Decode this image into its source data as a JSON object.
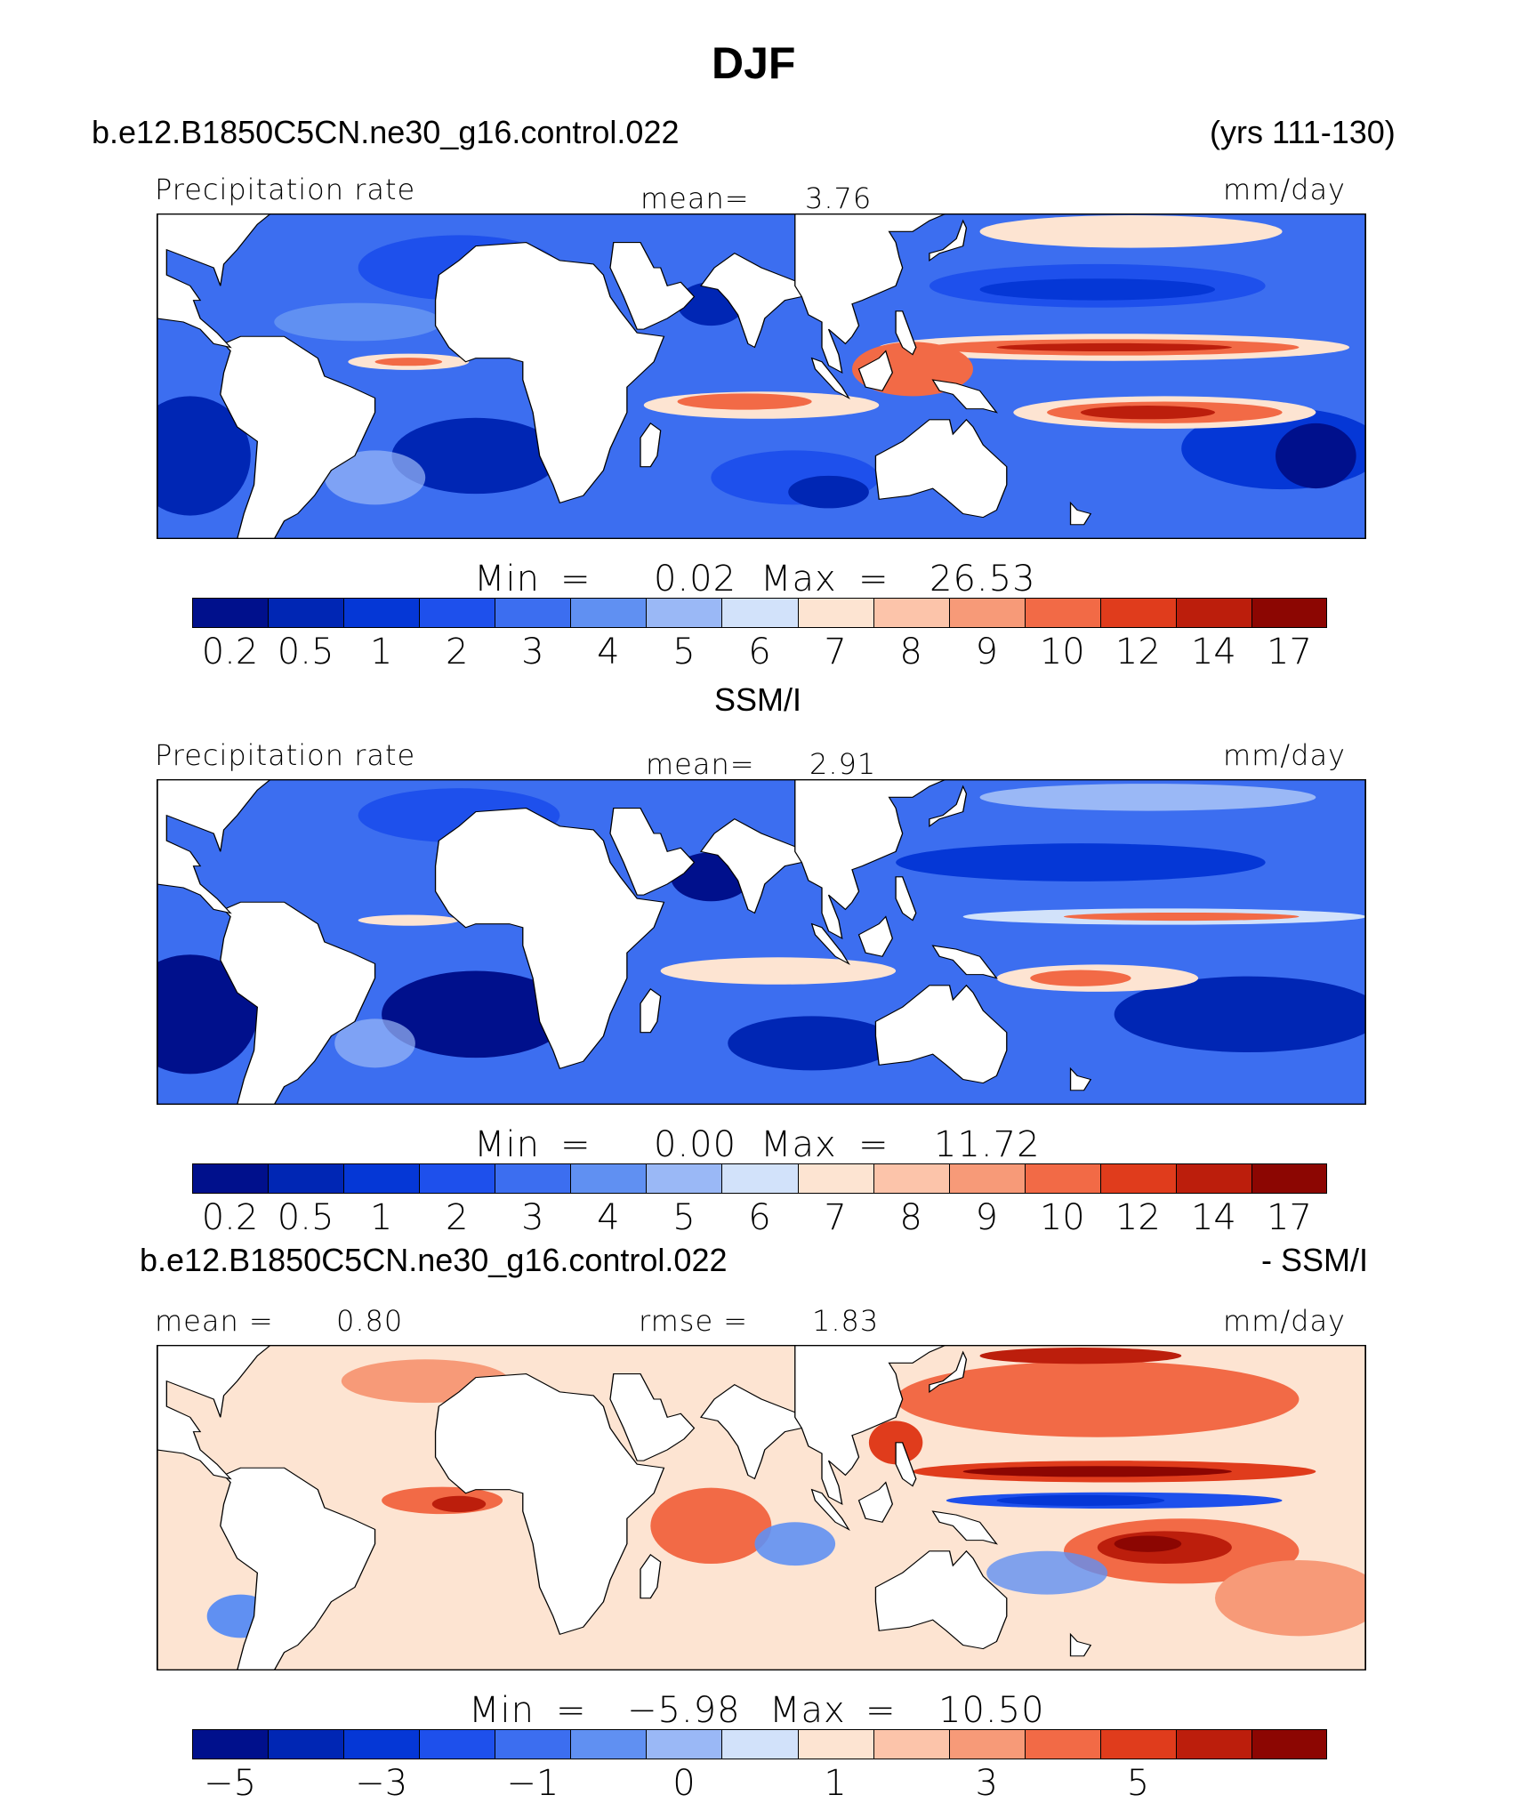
{
  "page": {
    "title": "DJF"
  },
  "panel1": {
    "case_name": "b.e12.B1850C5CN.ne30_g16.control.022",
    "years": "(yrs 111-130)",
    "variable": "Precipitation rate",
    "mean_label": "mean=",
    "mean_value": "3.76",
    "units": "mm/day",
    "min_label": "Min",
    "equals": "=",
    "min_value": "0.02",
    "max_label": "Max",
    "max_value": "26.53"
  },
  "panel2": {
    "case_name": "SSM/I",
    "variable": "Precipitation rate",
    "mean_label": "mean=",
    "mean_value": "2.91",
    "units": "mm/day",
    "min_label": "Min",
    "equals": "=",
    "min_value": "0.00",
    "max_label": "Max",
    "max_value": "11.72"
  },
  "panel3": {
    "case_name": "b.e12.B1850C5CN.ne30_g16.control.022",
    "minus_label": "- SSM/I",
    "mean_label": "mean =",
    "mean_value": "0.80",
    "rmse_label": "rmse =",
    "rmse_value": "1.83",
    "units": "mm/day",
    "min_label": "Min",
    "equals": "=",
    "min_value": "−5.98",
    "max_label": "Max",
    "max_value": "10.50"
  },
  "colorbar_colors": [
    "#00108c",
    "#0026b4",
    "#0537d6",
    "#1e50ec",
    "#3c6ef0",
    "#6090f2",
    "#9ab8f6",
    "#d2e2fa",
    "#fde4d2",
    "#fcc4aa",
    "#f79a78",
    "#f26a46",
    "#e03c1c",
    "#bc1e0c",
    "#8c0602"
  ],
  "colorbar_labels_abs": [
    "0.2",
    "0.5",
    "1",
    "2",
    "3",
    "4",
    "5",
    "6",
    "7",
    "8",
    "9",
    "10",
    "12",
    "14",
    "17"
  ],
  "colorbar_labels_diff": [
    "−5",
    "",
    "−3",
    "",
    "−1",
    "",
    "0",
    "",
    "1",
    "",
    "3",
    "",
    "5",
    "",
    ""
  ],
  "chart_data": [
    {
      "type": "heatmap",
      "title": "DJF",
      "name": "b.e12.B1850C5CN.ne30_g16.control.022",
      "variable": "Precipitation rate",
      "units": "mm/day",
      "mean": 3.76,
      "min": 0.02,
      "max": 26.53,
      "levels": [
        0.2,
        0.5,
        1,
        2,
        3,
        4,
        5,
        6,
        7,
        8,
        9,
        10,
        12,
        14,
        17
      ],
      "features": [
        {
          "kind": "band",
          "lon": [
            160,
            210
          ],
          "lat": 8,
          "value": 12
        },
        {
          "kind": "band",
          "lon": [
            170,
            225
          ],
          "lat": -10,
          "value": 11
        },
        {
          "kind": "band",
          "lon": [
            60,
            100
          ],
          "lat": -8,
          "value": 9
        },
        {
          "kind": "blob",
          "lon": 120,
          "lat": 5,
          "value": 10
        },
        {
          "kind": "blob",
          "lon": -25,
          "lat": 5,
          "value": 8
        },
        {
          "kind": "dry",
          "lon": 5,
          "lat": -20,
          "value": 0.3
        },
        {
          "kind": "dry",
          "lon": -85,
          "lat": -20,
          "value": 0.2
        },
        {
          "kind": "dry",
          "lon": 180,
          "lat": 22,
          "value": 0.5
        }
      ]
    },
    {
      "type": "heatmap",
      "name": "SSM/I",
      "variable": "Precipitation rate",
      "units": "mm/day",
      "mean": 2.91,
      "min": 0.0,
      "max": 11.72,
      "levels": [
        0.2,
        0.5,
        1,
        2,
        3,
        4,
        5,
        6,
        7,
        8,
        9,
        10,
        12,
        14,
        17
      ],
      "features": [
        {
          "kind": "band",
          "lon": [
            170,
            230
          ],
          "lat": 7,
          "value": 9
        },
        {
          "kind": "band",
          "lon": [
            160,
            200
          ],
          "lat": -10,
          "value": 9
        },
        {
          "kind": "band",
          "lon": [
            50,
            110
          ],
          "lat": -8,
          "value": 7
        },
        {
          "kind": "dry",
          "lon": 5,
          "lat": -22,
          "value": 0.2
        },
        {
          "kind": "dry",
          "lon": -90,
          "lat": -20,
          "value": 0.2
        },
        {
          "kind": "dry",
          "lon": 170,
          "lat": 20,
          "value": 0.5
        }
      ]
    },
    {
      "type": "heatmap",
      "name": "b.e12.B1850C5CN.ne30_g16.control.022 - SSM/I",
      "units": "mm/day",
      "mean": 0.8,
      "rmse": 1.83,
      "min": -5.98,
      "max": 10.5,
      "levels": [
        -6,
        -5,
        -4,
        -3,
        -2,
        -1,
        -0.5,
        0,
        0.5,
        1,
        2,
        3,
        4,
        5,
        6
      ],
      "features": [
        {
          "kind": "band",
          "lon": [
            160,
            220
          ],
          "lat": 8,
          "value": 6
        },
        {
          "kind": "band",
          "lon": [
            160,
            220
          ],
          "lat": 2,
          "value": -4
        },
        {
          "kind": "blob",
          "lon": 195,
          "lat": -12,
          "value": 8
        },
        {
          "kind": "blob",
          "lon": 65,
          "lat": -10,
          "value": 3
        },
        {
          "kind": "blob",
          "lon": -15,
          "lat": 2,
          "value": 4
        }
      ]
    }
  ]
}
